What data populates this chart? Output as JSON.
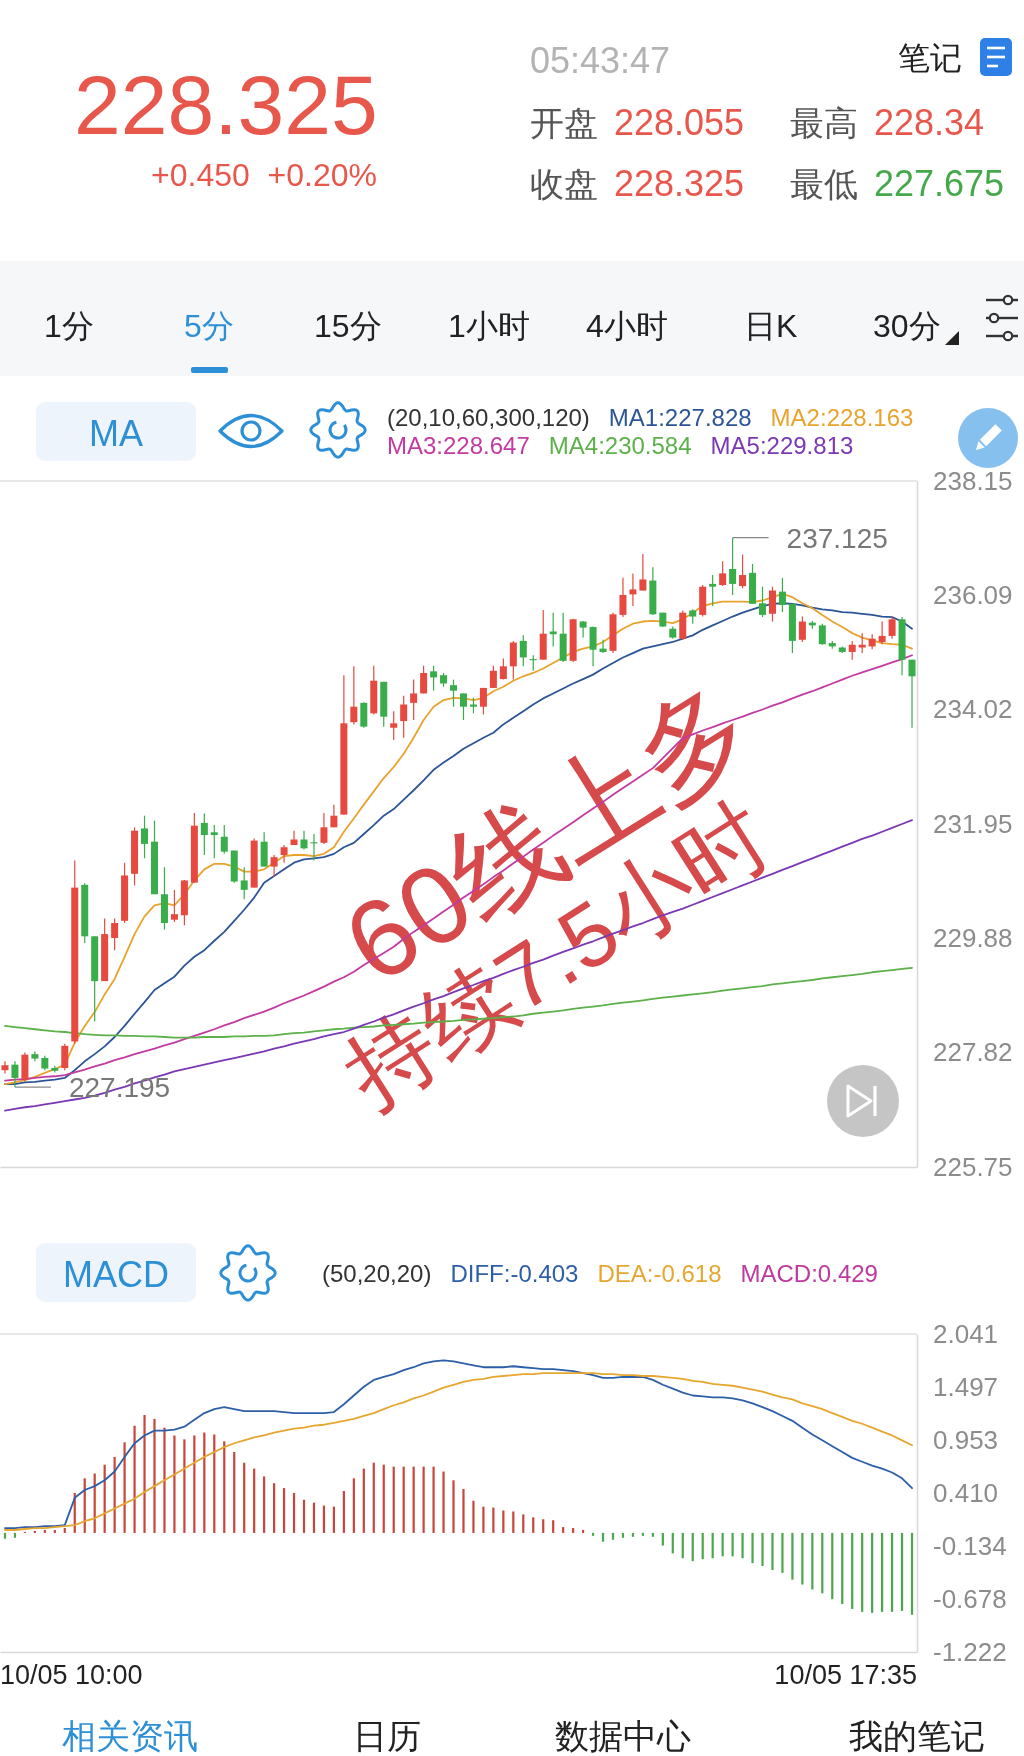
{
  "chart_data": [
    {
      "type": "other",
      "title": "228.325",
      "subtitle": "+0.450  +0.20%",
      "annotations": [
        "05:43:47",
        "开盘",
        "228.055",
        "收盘",
        "228.325",
        "最高",
        "228.34",
        "最低",
        "227.675",
        "笔记",
        "1分",
        "5分",
        "15分",
        "1小时",
        "4小时",
        "日K",
        "30分"
      ]
    },
    {
      "type": "candlestick",
      "title": "MA",
      "legend_title": "(20,10,60,300,120)",
      "legend": "top",
      "tick_labels": "y",
      "categories": [
        null,
        null,
        null,
        null,
        null,
        null,
        null,
        null,
        null,
        null,
        null,
        null,
        null,
        null,
        null,
        null,
        null,
        null,
        null,
        null,
        null,
        null,
        null,
        null,
        null,
        null,
        null,
        null,
        null,
        null,
        null,
        null,
        null,
        null,
        null,
        null,
        null,
        null,
        null,
        null,
        null,
        null,
        null,
        null,
        null,
        null,
        null,
        null,
        null,
        null,
        null,
        null,
        null,
        null,
        null,
        null,
        null,
        null,
        null,
        null,
        null,
        null,
        null,
        null,
        null,
        null,
        null,
        null,
        null,
        null,
        null,
        null,
        null,
        null,
        null,
        null,
        null,
        null,
        null,
        null,
        null,
        null,
        null,
        null,
        null,
        null,
        null,
        null,
        null,
        null,
        null,
        null
      ],
      "ylim": [
        225.75,
        238.15
      ],
      "yticks": [
        225.75,
        227.82,
        229.88,
        231.95,
        234.02,
        236.09,
        238.15
      ],
      "ohlc": [
        [
          227.5,
          227.66,
          227.44,
          227.59
        ],
        [
          227.6,
          227.66,
          227.195,
          227.36
        ],
        [
          227.33,
          227.82,
          227.29,
          227.78
        ],
        [
          227.79,
          227.84,
          227.66,
          227.71
        ],
        [
          227.72,
          227.76,
          227.5,
          227.53
        ],
        [
          227.54,
          227.58,
          227.46,
          227.49
        ],
        [
          227.54,
          227.98,
          227.5,
          227.94
        ],
        [
          228.02,
          231.29,
          227.98,
          230.8
        ],
        [
          230.85,
          230.88,
          229.8,
          229.92
        ],
        [
          229.92,
          229.92,
          228.38,
          229.11
        ],
        [
          229.11,
          230.24,
          229.11,
          229.96
        ],
        [
          229.89,
          230.24,
          229.67,
          230.16
        ],
        [
          230.2,
          231.25,
          230.16,
          231.02
        ],
        [
          231.05,
          231.89,
          230.84,
          231.83
        ],
        [
          231.87,
          232.1,
          231.33,
          231.59
        ],
        [
          231.63,
          232.01,
          230.68,
          230.68
        ],
        [
          230.68,
          231.17,
          230.04,
          230.16
        ],
        [
          230.22,
          230.76,
          230.18,
          230.32
        ],
        [
          230.3,
          230.94,
          230.12,
          230.93
        ],
        [
          230.89,
          232.15,
          230.89,
          231.92
        ],
        [
          231.97,
          232.14,
          231.39,
          231.75
        ],
        [
          231.8,
          231.93,
          231.33,
          231.75
        ],
        [
          231.72,
          231.93,
          231.41,
          231.45
        ],
        [
          231.47,
          231.47,
          230.89,
          230.91
        ],
        [
          230.93,
          231.17,
          230.59,
          230.76
        ],
        [
          230.8,
          231.69,
          230.8,
          231.65
        ],
        [
          231.63,
          231.8,
          231.18,
          231.18
        ],
        [
          231.18,
          231.39,
          230.99,
          231.35
        ],
        [
          231.39,
          231.57,
          231.25,
          231.53
        ],
        [
          231.57,
          231.83,
          231.57,
          231.67
        ],
        [
          231.67,
          231.83,
          231.49,
          231.51
        ],
        [
          231.62,
          231.77,
          231.29,
          231.6
        ],
        [
          231.61,
          232.15,
          231.59,
          231.89
        ],
        [
          231.89,
          232.3,
          231.89,
          232.1
        ],
        [
          232.12,
          234.64,
          232.12,
          233.77
        ],
        [
          233.79,
          234.8,
          233.75,
          234.07
        ],
        [
          234.14,
          234.15,
          233.69,
          233.71
        ],
        [
          233.95,
          234.81,
          233.93,
          234.54
        ],
        [
          234.52,
          234.52,
          233.71,
          233.89
        ],
        [
          233.69,
          233.99,
          233.47,
          233.77
        ],
        [
          233.81,
          234.27,
          233.51,
          234.11
        ],
        [
          234.14,
          234.56,
          233.83,
          234.31
        ],
        [
          234.31,
          234.81,
          234.31,
          234.68
        ],
        [
          234.71,
          234.81,
          234.36,
          234.6
        ],
        [
          234.64,
          234.68,
          234.43,
          234.49
        ],
        [
          234.46,
          234.56,
          234.07,
          234.36
        ],
        [
          234.31,
          234.31,
          233.83,
          234.07
        ],
        [
          234.11,
          234.23,
          233.95,
          234.07
        ],
        [
          234.07,
          234.41,
          233.93,
          234.41
        ],
        [
          234.41,
          234.81,
          234.41,
          234.72
        ],
        [
          234.57,
          234.94,
          234.56,
          234.8
        ],
        [
          234.8,
          235.26,
          234.56,
          235.23
        ],
        [
          235.26,
          235.36,
          234.8,
          234.96
        ],
        [
          234.93,
          235.0,
          234.72,
          234.91
        ],
        [
          234.92,
          235.82,
          234.92,
          235.39
        ],
        [
          235.43,
          235.77,
          235.16,
          235.38
        ],
        [
          235.39,
          235.77,
          234.88,
          234.9
        ],
        [
          234.9,
          235.66,
          234.88,
          235.65
        ],
        [
          235.61,
          235.62,
          235.32,
          235.5
        ],
        [
          235.51,
          235.52,
          234.8,
          235.1
        ],
        [
          235.12,
          235.28,
          235.04,
          235.06
        ],
        [
          235.08,
          235.77,
          235.04,
          235.74
        ],
        [
          235.73,
          236.4,
          235.69,
          236.09
        ],
        [
          236.1,
          236.48,
          235.89,
          236.19
        ],
        [
          236.17,
          236.83,
          236.17,
          236.37
        ],
        [
          236.35,
          236.59,
          235.73,
          235.74
        ],
        [
          235.77,
          235.77,
          235.51,
          235.52
        ],
        [
          235.48,
          235.52,
          235.3,
          235.32
        ],
        [
          235.3,
          235.81,
          235.28,
          235.77
        ],
        [
          235.81,
          235.83,
          235.57,
          235.7
        ],
        [
          235.73,
          236.27,
          235.7,
          236.24
        ],
        [
          236.29,
          236.45,
          235.89,
          236.24
        ],
        [
          236.27,
          236.7,
          236.25,
          236.48
        ],
        [
          236.56,
          237.125,
          236.09,
          236.29
        ],
        [
          236.25,
          236.82,
          236.21,
          236.45
        ],
        [
          236.49,
          236.65,
          235.93,
          235.93
        ],
        [
          235.94,
          236.24,
          235.69,
          235.73
        ],
        [
          235.75,
          236.24,
          235.61,
          236.17
        ],
        [
          236.15,
          236.4,
          235.78,
          235.91
        ],
        [
          235.93,
          235.93,
          235.04,
          235.26
        ],
        [
          235.28,
          235.7,
          235.24,
          235.61
        ],
        [
          235.59,
          235.62,
          235.48,
          235.54
        ],
        [
          235.54,
          235.57,
          235.19,
          235.2
        ],
        [
          235.22,
          235.26,
          235.12,
          235.16
        ],
        [
          235.14,
          235.16,
          235.04,
          235.06
        ],
        [
          235.06,
          235.26,
          234.92,
          235.19
        ],
        [
          235.14,
          235.4,
          235.04,
          235.19
        ],
        [
          235.16,
          235.38,
          235.11,
          235.3
        ],
        [
          235.24,
          235.61,
          235.2,
          235.35
        ],
        [
          235.35,
          235.69,
          235.3,
          235.65
        ],
        [
          235.65,
          235.69,
          234.64,
          234.92
        ],
        [
          234.92,
          234.92,
          233.69,
          234.62
        ]
      ],
      "colors": [
        "#e5493f",
        "#38ad4a",
        "#e5493f",
        "#38ad4a",
        "#38ad4a",
        "#38ad4a",
        "#e5493f",
        "#e5493f",
        "#38ad4a",
        "#38ad4a",
        "#e5493f",
        "#e5493f",
        "#e5493f",
        "#e5493f",
        "#38ad4a",
        "#38ad4a",
        "#38ad4a",
        "#e5493f",
        "#e5493f",
        "#e5493f",
        "#38ad4a",
        "#38ad4a",
        "#38ad4a",
        "#38ad4a",
        "#38ad4a",
        "#e5493f",
        "#38ad4a",
        "#e5493f",
        "#e5493f",
        "#e5493f",
        "#38ad4a",
        "#38ad4a",
        "#e5493f",
        "#e5493f",
        "#e5493f",
        "#e5493f",
        "#38ad4a",
        "#e5493f",
        "#38ad4a",
        "#e5493f",
        "#e5493f",
        "#e5493f",
        "#e5493f",
        "#38ad4a",
        "#38ad4a",
        "#38ad4a",
        "#38ad4a",
        "#38ad4a",
        "#e5493f",
        "#e5493f",
        "#e5493f",
        "#e5493f",
        "#38ad4a",
        "#38ad4a",
        "#e5493f",
        "#38ad4a",
        "#38ad4a",
        "#e5493f",
        "#38ad4a",
        "#38ad4a",
        "#38ad4a",
        "#e5493f",
        "#e5493f",
        "#e5493f",
        "#e5493f",
        "#38ad4a",
        "#38ad4a",
        "#38ad4a",
        "#e5493f",
        "#38ad4a",
        "#e5493f",
        "#38ad4a",
        "#e5493f",
        "#38ad4a",
        "#e5493f",
        "#38ad4a",
        "#38ad4a",
        "#e5493f",
        "#38ad4a",
        "#38ad4a",
        "#e5493f",
        "#38ad4a",
        "#38ad4a",
        "#38ad4a",
        "#38ad4a",
        "#e5493f",
        "#e5493f",
        "#e5493f",
        "#e5493f",
        "#e5493f",
        "#38ad4a",
        "#38ad4a"
      ],
      "series": [
        {
          "name": "MA1:227.828",
          "type": "line",
          "color": "#2b5597",
          "values": [
            227.25,
            227.25,
            227.28,
            227.29,
            227.31,
            227.33,
            227.36,
            227.5,
            227.66,
            227.79,
            227.93,
            228.1,
            228.3,
            228.52,
            228.73,
            228.95,
            229.07,
            229.19,
            229.39,
            229.55,
            229.67,
            229.84,
            230.0,
            230.2,
            230.4,
            230.62,
            230.89,
            231.01,
            231.13,
            231.25,
            231.31,
            231.33,
            231.35,
            231.41,
            231.53,
            231.61,
            231.77,
            231.93,
            232.1,
            232.22,
            232.39,
            232.56,
            232.74,
            232.93,
            233.06,
            233.18,
            233.31,
            233.41,
            233.51,
            233.6,
            233.75,
            233.87,
            233.99,
            234.11,
            234.22,
            234.31,
            234.4,
            234.49,
            234.57,
            234.65,
            234.76,
            234.86,
            234.96,
            235.04,
            235.12,
            235.16,
            235.2,
            235.24,
            235.3,
            235.36,
            235.46,
            235.54,
            235.62,
            235.7,
            235.77,
            235.83,
            235.89,
            235.93,
            235.94,
            235.93,
            235.9,
            235.86,
            235.83,
            235.81,
            235.78,
            235.77,
            235.75,
            235.73,
            235.7,
            235.69,
            235.61,
            235.48
          ]
        },
        {
          "name": "MA2:228.163",
          "type": "line",
          "color": "#e8a32e",
          "values": [
            227.25,
            227.28,
            227.32,
            227.38,
            227.45,
            227.52,
            227.6,
            228.0,
            228.3,
            228.55,
            228.87,
            229.15,
            229.55,
            229.96,
            230.28,
            230.48,
            230.52,
            230.48,
            230.68,
            230.93,
            231.13,
            231.23,
            231.23,
            231.18,
            231.09,
            231.09,
            231.13,
            231.25,
            231.37,
            231.39,
            231.39,
            231.37,
            231.41,
            231.53,
            231.81,
            232.05,
            232.3,
            232.54,
            232.78,
            232.98,
            233.22,
            233.51,
            233.83,
            234.07,
            234.19,
            234.23,
            234.22,
            234.19,
            234.23,
            234.35,
            234.43,
            234.54,
            234.62,
            234.68,
            234.76,
            234.86,
            234.96,
            235.06,
            235.12,
            235.16,
            235.24,
            235.36,
            235.48,
            235.57,
            235.61,
            235.62,
            235.61,
            235.58,
            235.65,
            235.77,
            235.89,
            235.94,
            235.97,
            235.97,
            235.97,
            235.96,
            235.99,
            236.05,
            236.11,
            236.05,
            235.94,
            235.85,
            235.73,
            235.61,
            235.51,
            235.4,
            235.32,
            235.27,
            235.22,
            235.2,
            235.19,
            235.12
          ]
        },
        {
          "name": "MA3:228.647",
          "type": "line",
          "color": "#c33aa3",
          "values": [
            227.31,
            227.33,
            227.34,
            227.36,
            227.38,
            227.39,
            227.41,
            227.46,
            227.51,
            227.57,
            227.62,
            227.68,
            227.73,
            227.79,
            227.84,
            227.89,
            227.95,
            228.0,
            228.06,
            228.12,
            228.18,
            228.24,
            228.31,
            228.37,
            228.44,
            228.5,
            228.56,
            228.63,
            228.71,
            228.78,
            228.85,
            228.93,
            229.01,
            229.1,
            229.18,
            229.28,
            229.4,
            229.51,
            229.62,
            229.73,
            229.87,
            230.0,
            230.12,
            230.24,
            230.37,
            230.49,
            230.62,
            230.74,
            230.86,
            230.99,
            231.11,
            231.24,
            231.36,
            231.49,
            231.61,
            231.74,
            231.86,
            231.98,
            232.11,
            232.23,
            232.35,
            232.48,
            232.6,
            232.72,
            232.84,
            232.96,
            233.14,
            233.32,
            233.5,
            233.57,
            233.64,
            233.7,
            233.77,
            233.83,
            233.89,
            233.96,
            234.02,
            234.09,
            234.15,
            234.22,
            234.29,
            234.35,
            234.42,
            234.49,
            234.56,
            234.63,
            234.69,
            234.75,
            234.81,
            234.87,
            234.93,
            235.0
          ]
        },
        {
          "name": "MA4:230.584",
          "type": "line",
          "color": "#5cb14a",
          "values": [
            228.3,
            228.28,
            228.26,
            228.24,
            228.22,
            228.2,
            228.19,
            228.17,
            228.15,
            228.14,
            228.13,
            228.13,
            228.12,
            228.12,
            228.11,
            228.11,
            228.1,
            228.09,
            228.09,
            228.09,
            228.1,
            228.1,
            228.1,
            228.11,
            228.11,
            228.12,
            228.12,
            228.13,
            228.15,
            228.17,
            228.18,
            228.2,
            228.22,
            228.24,
            228.25,
            228.27,
            228.28,
            228.29,
            228.31,
            228.32,
            228.33,
            228.34,
            228.36,
            228.37,
            228.38,
            228.39,
            228.41,
            228.42,
            228.43,
            228.44,
            228.46,
            228.47,
            228.49,
            228.52,
            228.54,
            228.56,
            228.58,
            228.61,
            228.63,
            228.65,
            228.67,
            228.7,
            228.72,
            228.74,
            228.76,
            228.79,
            228.81,
            228.83,
            228.85,
            228.87,
            228.89,
            228.91,
            228.94,
            228.96,
            228.98,
            229.0,
            229.02,
            229.05,
            229.07,
            229.09,
            229.11,
            229.13,
            229.16,
            229.18,
            229.2,
            229.22,
            229.24,
            229.27,
            229.29,
            229.31,
            229.33,
            229.35
          ]
        },
        {
          "name": "MA5:229.813",
          "type": "line",
          "color": "#7c38b4",
          "values": [
            226.77,
            226.8,
            226.83,
            226.85,
            226.88,
            226.91,
            226.94,
            226.97,
            227.0,
            227.04,
            227.09,
            227.15,
            227.2,
            227.26,
            227.31,
            227.37,
            227.42,
            227.48,
            227.52,
            227.56,
            227.6,
            227.64,
            227.68,
            227.72,
            227.76,
            227.8,
            227.84,
            227.89,
            227.93,
            227.98,
            228.02,
            228.06,
            228.11,
            228.15,
            228.19,
            228.25,
            228.32,
            228.38,
            228.45,
            228.51,
            228.58,
            228.65,
            228.71,
            228.78,
            228.84,
            228.91,
            228.98,
            229.04,
            229.11,
            229.17,
            229.24,
            229.31,
            229.37,
            229.44,
            229.5,
            229.57,
            229.64,
            229.7,
            229.77,
            229.83,
            229.9,
            229.97,
            230.03,
            230.1,
            230.16,
            230.23,
            230.3,
            230.36,
            230.42,
            230.49,
            230.56,
            230.63,
            230.7,
            230.77,
            230.84,
            230.91,
            230.98,
            231.05,
            231.12,
            231.19,
            231.26,
            231.33,
            231.4,
            231.47,
            231.54,
            231.61,
            231.68,
            231.74,
            231.81,
            231.88,
            231.95,
            232.02
          ]
        }
      ],
      "annotations": [
        "237.125",
        "227.195",
        "60线上多",
        "持续7.5小时"
      ]
    },
    {
      "type": "bar",
      "title": "MACD",
      "legend_title": "(50,20,20)",
      "legend": "top",
      "tick_labels": "y",
      "categories": [
        null,
        null,
        null,
        null,
        null,
        null,
        null,
        null,
        null,
        null,
        null,
        null,
        null,
        null,
        null,
        null,
        null,
        null,
        null,
        null,
        null,
        null,
        null,
        null,
        null,
        null,
        null,
        null,
        null,
        null,
        null,
        null,
        null,
        null,
        null,
        null,
        null,
        null,
        null,
        null,
        null,
        null,
        null,
        null,
        null,
        null,
        null,
        null,
        null,
        null,
        null,
        null,
        null,
        null,
        null,
        null,
        null,
        null,
        null,
        null,
        null,
        null,
        null,
        null,
        null,
        null,
        null,
        null,
        null,
        null,
        null,
        null,
        null,
        null,
        null,
        null,
        null,
        null,
        null,
        null,
        null,
        null,
        null,
        null,
        null,
        null,
        null,
        null,
        null,
        null,
        null,
        null
      ],
      "ylim": [
        -1.222,
        2.041
      ],
      "yticks": [
        -1.222,
        -0.678,
        -0.134,
        {
          "value": 0.41,
          "label": "0.410"
        },
        0.953,
        1.497,
        2.041
      ],
      "series": [
        {
          "name": "DIFF:-0.403",
          "type": "line",
          "color": "#2d5fa8",
          "values": [
            0.05,
            0.05,
            0.06,
            0.06,
            0.07,
            0.07,
            0.08,
            0.36,
            0.44,
            0.48,
            0.54,
            0.63,
            0.78,
            0.92,
            1.0,
            1.05,
            1.05,
            1.06,
            1.09,
            1.16,
            1.23,
            1.27,
            1.29,
            1.27,
            1.25,
            1.25,
            1.25,
            1.25,
            1.24,
            1.23,
            1.23,
            1.23,
            1.23,
            1.24,
            1.32,
            1.41,
            1.5,
            1.57,
            1.6,
            1.63,
            1.67,
            1.7,
            1.74,
            1.76,
            1.77,
            1.76,
            1.74,
            1.72,
            1.7,
            1.7,
            1.7,
            1.71,
            1.7,
            1.69,
            1.68,
            1.68,
            1.67,
            1.66,
            1.64,
            1.62,
            1.59,
            1.59,
            1.6,
            1.6,
            1.6,
            1.57,
            1.52,
            1.48,
            1.44,
            1.41,
            1.4,
            1.39,
            1.39,
            1.38,
            1.36,
            1.33,
            1.29,
            1.25,
            1.2,
            1.15,
            1.08,
            1.01,
            0.95,
            0.89,
            0.83,
            0.77,
            0.73,
            0.69,
            0.66,
            0.62,
            0.56,
            0.46
          ]
        },
        {
          "name": "DEA:-0.618",
          "type": "line",
          "color": "#e6a630",
          "values": [
            0.03,
            0.03,
            0.04,
            0.05,
            0.05,
            0.06,
            0.07,
            0.08,
            0.12,
            0.15,
            0.2,
            0.25,
            0.3,
            0.35,
            0.42,
            0.48,
            0.54,
            0.6,
            0.66,
            0.72,
            0.78,
            0.83,
            0.88,
            0.92,
            0.95,
            0.98,
            1.0,
            1.03,
            1.05,
            1.07,
            1.08,
            1.1,
            1.11,
            1.13,
            1.15,
            1.17,
            1.2,
            1.23,
            1.27,
            1.31,
            1.34,
            1.38,
            1.41,
            1.45,
            1.49,
            1.52,
            1.55,
            1.57,
            1.58,
            1.6,
            1.61,
            1.62,
            1.63,
            1.63,
            1.64,
            1.64,
            1.64,
            1.64,
            1.64,
            1.64,
            1.63,
            1.63,
            1.62,
            1.62,
            1.61,
            1.61,
            1.6,
            1.59,
            1.58,
            1.56,
            1.55,
            1.53,
            1.52,
            1.51,
            1.49,
            1.47,
            1.45,
            1.42,
            1.39,
            1.37,
            1.33,
            1.3,
            1.27,
            1.23,
            1.19,
            1.15,
            1.12,
            1.08,
            1.04,
            1.0,
            0.95,
            0.9
          ]
        },
        {
          "type": "bar",
          "colors": [
            "#4ba64d",
            "#4ba64d",
            "#c8453c",
            "#c8453c",
            "#c8453c",
            "#c8453c",
            "#c8453c",
            "#c8453c",
            "#c8453c",
            "#c8453c",
            "#c8453c",
            "#c8453c",
            "#c8453c",
            "#c8453c",
            "#c8453c",
            "#c8453c",
            "#c8453c",
            "#c8453c",
            "#c8453c",
            "#c8453c",
            "#c8453c",
            "#c8453c",
            "#c8453c",
            "#c8453c",
            "#c8453c",
            "#c8453c",
            "#c8453c",
            "#c8453c",
            "#c8453c",
            "#c8453c",
            "#c8453c",
            "#c8453c",
            "#c8453c",
            "#c8453c",
            "#c8453c",
            "#c8453c",
            "#c8453c",
            "#c8453c",
            "#c8453c",
            "#c8453c",
            "#c8453c",
            "#c8453c",
            "#c8453c",
            "#c8453c",
            "#c8453c",
            "#c8453c",
            "#c8453c",
            "#c8453c",
            "#c8453c",
            "#c8453c",
            "#c8453c",
            "#c8453c",
            "#c8453c",
            "#c8453c",
            "#c8453c",
            "#c8453c",
            "#c8453c",
            "#c8453c",
            "#c8453c",
            "#4ba64d",
            "#4ba64d",
            "#4ba64d",
            "#4ba64d",
            "#4ba64d",
            "#4ba64d",
            "#4ba64d",
            "#4ba64d",
            "#4ba64d",
            "#4ba64d",
            "#4ba64d",
            "#4ba64d",
            "#4ba64d",
            "#4ba64d",
            "#4ba64d",
            "#4ba64d",
            "#4ba64d",
            "#4ba64d",
            "#4ba64d",
            "#4ba64d",
            "#4ba64d",
            "#4ba64d",
            "#4ba64d",
            "#4ba64d",
            "#4ba64d",
            "#4ba64d",
            "#4ba64d",
            "#4ba64d",
            "#4ba64d",
            "#4ba64d",
            "#4ba64d",
            "#4ba64d",
            "#4ba64d"
          ],
          "values": [
            -0.06,
            -0.05,
            0.01,
            0.02,
            0.03,
            0.03,
            0.05,
            0.41,
            0.56,
            0.61,
            0.7,
            0.78,
            0.93,
            1.1,
            1.21,
            1.17,
            1.08,
            1.0,
            0.96,
            1.0,
            1.03,
            1.01,
            0.94,
            0.83,
            0.72,
            0.66,
            0.58,
            0.51,
            0.46,
            0.41,
            0.34,
            0.31,
            0.28,
            0.27,
            0.43,
            0.56,
            0.66,
            0.72,
            0.7,
            0.68,
            0.68,
            0.68,
            0.68,
            0.68,
            0.63,
            0.54,
            0.45,
            0.33,
            0.27,
            0.26,
            0.23,
            0.22,
            0.19,
            0.16,
            0.14,
            0.13,
            0.06,
            0.05,
            0.03,
            -0.03,
            -0.09,
            -0.07,
            -0.05,
            -0.04,
            -0.03,
            -0.04,
            -0.13,
            -0.21,
            -0.26,
            -0.29,
            -0.27,
            -0.26,
            -0.24,
            -0.24,
            -0.26,
            -0.31,
            -0.34,
            -0.38,
            -0.41,
            -0.48,
            -0.53,
            -0.58,
            -0.62,
            -0.68,
            -0.73,
            -0.78,
            -0.81,
            -0.82,
            -0.81,
            -0.81,
            -0.8,
            -0.84
          ]
        }
      ],
      "annotations": [
        "MACD:0.429",
        "10/05 10:00",
        "10/05 17:35"
      ]
    },
    {
      "type": "other",
      "annotations": [
        "相关资讯",
        "日历",
        "数据中心",
        "我的笔记"
      ]
    }
  ]
}
